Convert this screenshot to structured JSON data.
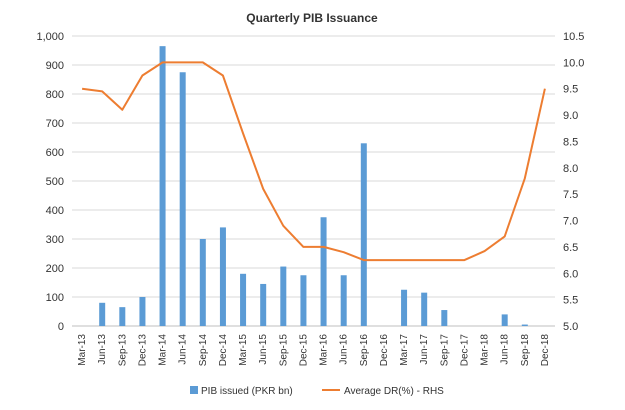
{
  "chart_data": {
    "type": "bar",
    "title": "Quarterly PIB Issuance",
    "categories": [
      "Mar-13",
      "Jun-13",
      "Sep-13",
      "Dec-13",
      "Mar-14",
      "Jun-14",
      "Sep-14",
      "Dec-14",
      "Mar-15",
      "Jun-15",
      "Sep-15",
      "Dec-15",
      "Mar-16",
      "Jun-16",
      "Sep-16",
      "Dec-16",
      "Mar-17",
      "Jun-17",
      "Sep-17",
      "Dec-17",
      "Mar-18",
      "Jun-18",
      "Sep-18",
      "Dec-18"
    ],
    "series": [
      {
        "name": "PIB issued (PKR bn)",
        "type": "bar",
        "axis": "left",
        "color": "#5B9BD5",
        "values": [
          0,
          80,
          65,
          100,
          965,
          875,
          300,
          340,
          180,
          145,
          205,
          175,
          375,
          175,
          630,
          0,
          125,
          115,
          55,
          0,
          0,
          40,
          5,
          0
        ]
      },
      {
        "name": "Average DR(%) - RHS",
        "type": "line",
        "axis": "right",
        "color": "#ED7D31",
        "values": [
          9.5,
          9.45,
          9.1,
          9.75,
          10.0,
          10.0,
          10.0,
          9.75,
          8.65,
          7.6,
          6.9,
          6.5,
          6.5,
          6.4,
          6.25,
          6.25,
          6.25,
          6.25,
          6.25,
          6.25,
          6.42,
          6.7,
          7.8,
          9.5
        ]
      }
    ],
    "y_left": {
      "ylim": [
        0,
        1000
      ],
      "ticks": [
        0,
        100,
        200,
        300,
        400,
        500,
        600,
        700,
        800,
        900,
        1000
      ],
      "tick_labels": [
        "0",
        "100",
        "200",
        "300",
        "400",
        "500",
        "600",
        "700",
        "800",
        "900",
        "1,000"
      ]
    },
    "y_right": {
      "ylim": [
        5.0,
        10.5
      ],
      "ticks": [
        5.0,
        5.5,
        6.0,
        6.5,
        7.0,
        7.5,
        8.0,
        8.5,
        9.0,
        9.5,
        10.0,
        10.5
      ],
      "tick_labels": [
        "5.0",
        "5.5",
        "6.0",
        "6.5",
        "7.0",
        "7.5",
        "8.0",
        "8.5",
        "9.0",
        "9.5",
        "10.0",
        "10.5"
      ]
    },
    "grid": true,
    "legend_position": "bottom"
  }
}
